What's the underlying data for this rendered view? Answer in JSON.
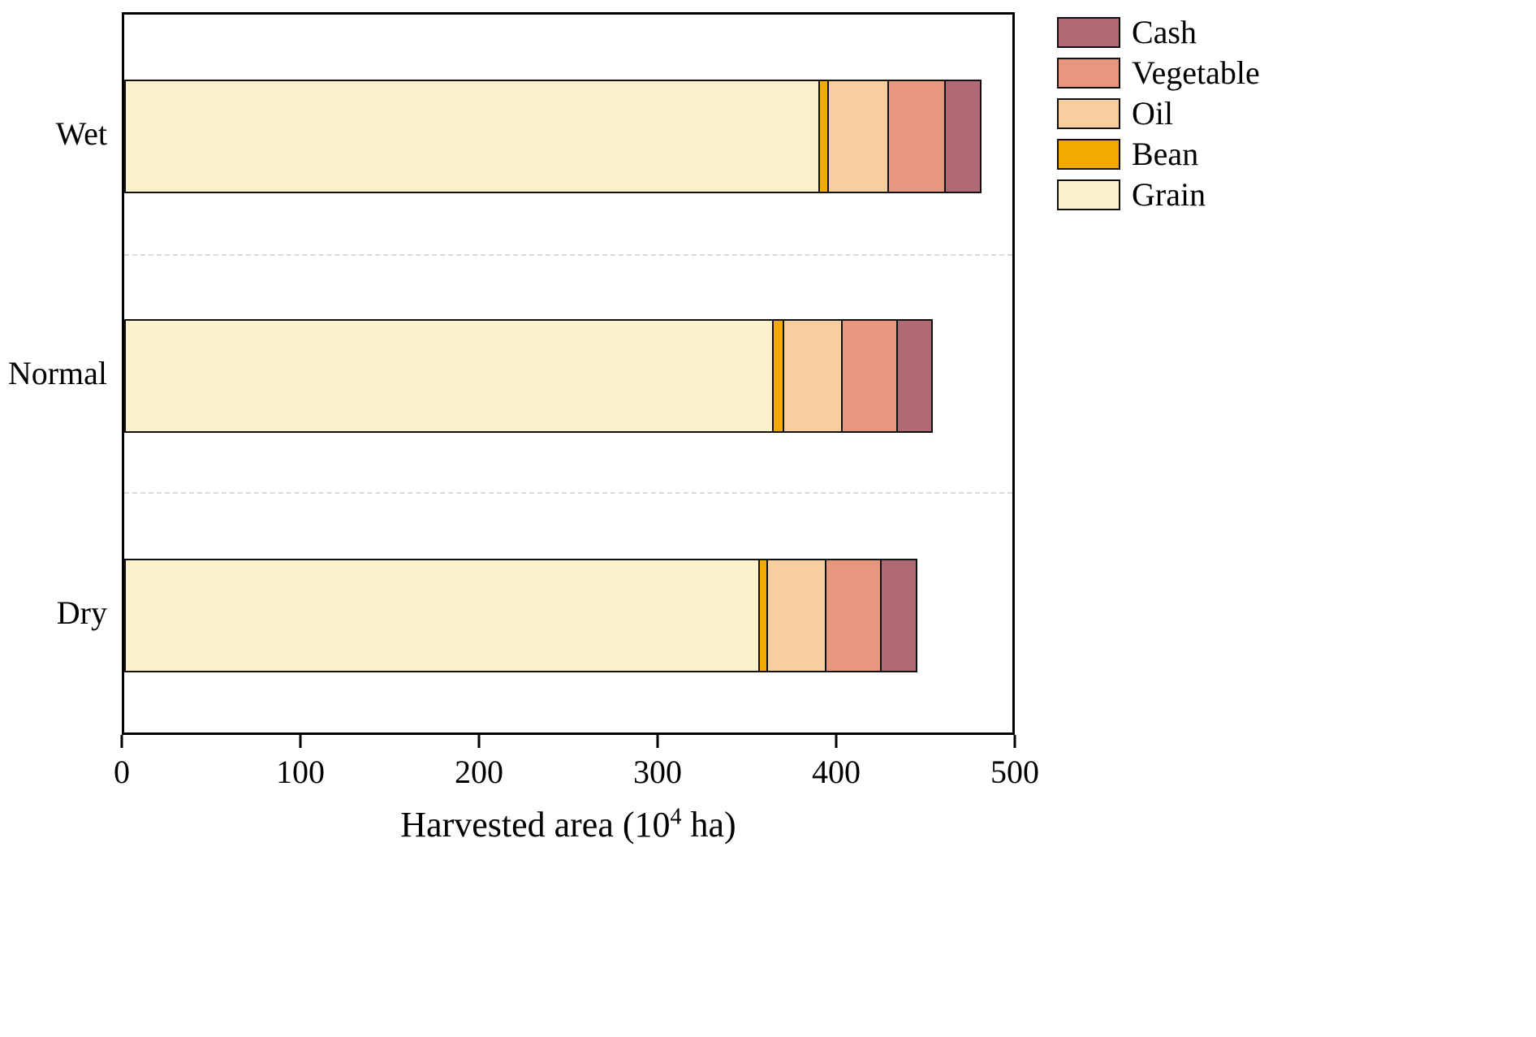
{
  "chart_data": {
    "type": "bar",
    "orientation": "horizontal",
    "stacked": true,
    "categories": [
      "Wet",
      "Normal",
      "Dry"
    ],
    "series": [
      {
        "name": "Grain",
        "color": "#FBF2CC",
        "values": [
          392,
          366,
          358
        ]
      },
      {
        "name": "Bean",
        "color": "#F2A900",
        "values": [
          6,
          7,
          6
        ]
      },
      {
        "name": "Oil",
        "color": "#F7CF9F",
        "values": [
          35,
          34,
          34
        ]
      },
      {
        "name": "Vegetable",
        "color": "#E6977E",
        "values": [
          33,
          32,
          32
        ]
      },
      {
        "name": "Cash",
        "color": "#B06A73",
        "values": [
          21,
          21,
          21
        ]
      }
    ],
    "totals": [
      487,
      460,
      451
    ],
    "xlim": [
      0,
      500
    ],
    "xticks": [
      0,
      100,
      200,
      300,
      400,
      500
    ],
    "xlabel": {
      "prefix": "Harvested area (10",
      "sup": "4",
      "suffix": " ha)"
    },
    "legend": [
      "Cash",
      "Vegetable",
      "Oil",
      "Bean",
      "Grain"
    ],
    "legend_position": "upper right outside",
    "grid": "dashed horizontal separators between bars",
    "edge_color": "#111111",
    "background": "#ffffff"
  }
}
